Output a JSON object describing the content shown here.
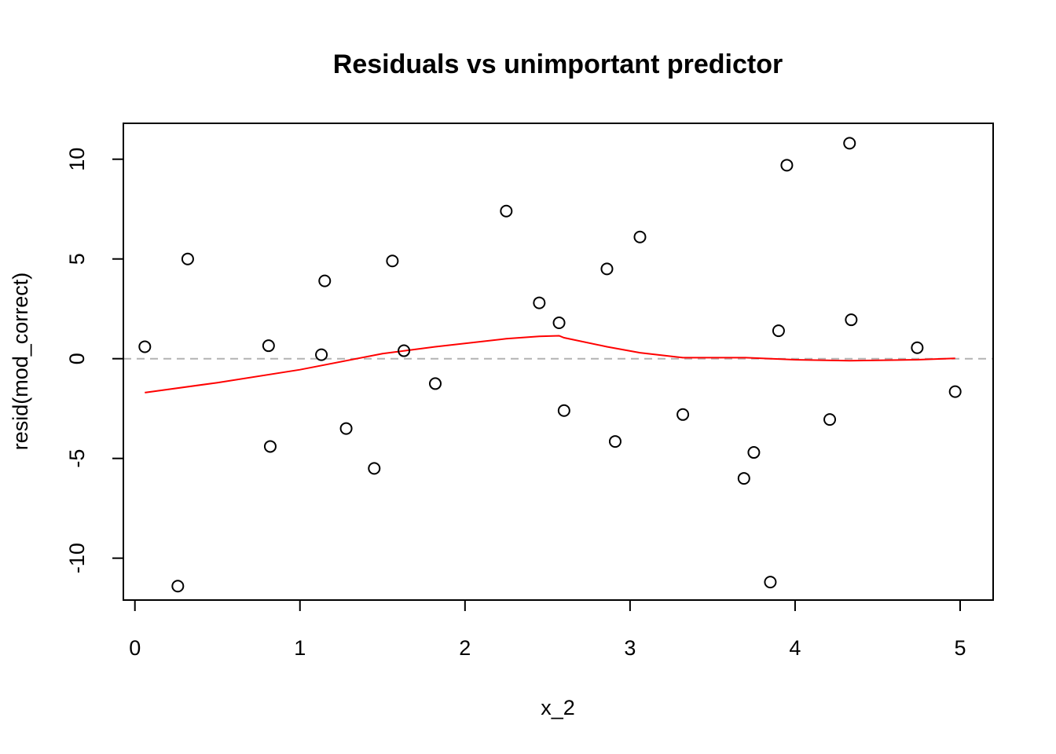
{
  "chart_data": {
    "type": "scatter",
    "title": "Residuals vs unimportant predictor",
    "xlabel": "x_2",
    "ylabel": "resid(mod_correct)",
    "xlim": [
      -0.07,
      5.2
    ],
    "ylim": [
      -12.1,
      11.8
    ],
    "x_ticks": [
      0,
      1,
      2,
      3,
      4,
      5
    ],
    "y_ticks": [
      -10,
      -5,
      0,
      5,
      10
    ],
    "reference_line": {
      "y": 0,
      "style": "dashed",
      "color": "#b3b3b3"
    },
    "point_color": "#000000",
    "points": [
      {
        "x": 0.06,
        "y": 0.6
      },
      {
        "x": 0.26,
        "y": -11.4
      },
      {
        "x": 0.32,
        "y": 5.0
      },
      {
        "x": 0.81,
        "y": 0.65
      },
      {
        "x": 0.82,
        "y": -4.4
      },
      {
        "x": 1.13,
        "y": 0.2
      },
      {
        "x": 1.15,
        "y": 3.9
      },
      {
        "x": 1.28,
        "y": -3.5
      },
      {
        "x": 1.45,
        "y": -5.5
      },
      {
        "x": 1.56,
        "y": 4.9
      },
      {
        "x": 1.63,
        "y": 0.4
      },
      {
        "x": 1.82,
        "y": -1.25
      },
      {
        "x": 2.25,
        "y": 7.4
      },
      {
        "x": 2.45,
        "y": 2.8
      },
      {
        "x": 2.57,
        "y": 1.8
      },
      {
        "x": 2.6,
        "y": -2.6
      },
      {
        "x": 2.86,
        "y": 4.5
      },
      {
        "x": 2.91,
        "y": -4.15
      },
      {
        "x": 3.06,
        "y": 6.1
      },
      {
        "x": 3.32,
        "y": -2.8
      },
      {
        "x": 3.69,
        "y": -6.0
      },
      {
        "x": 3.75,
        "y": -4.7
      },
      {
        "x": 3.85,
        "y": -11.2
      },
      {
        "x": 3.9,
        "y": 1.4
      },
      {
        "x": 3.95,
        "y": 9.7
      },
      {
        "x": 4.21,
        "y": -3.05
      },
      {
        "x": 4.33,
        "y": 10.8
      },
      {
        "x": 4.34,
        "y": 1.95
      },
      {
        "x": 4.74,
        "y": 0.55
      },
      {
        "x": 4.97,
        "y": -1.65
      }
    ],
    "smooth_line": {
      "color": "#ff0000",
      "x": [
        0.06,
        0.5,
        1.0,
        1.5,
        1.82,
        2.25,
        2.45,
        2.57,
        2.6,
        2.86,
        3.06,
        3.32,
        3.7,
        4.0,
        4.33,
        4.74,
        4.97
      ],
      "y": [
        -1.7,
        -1.2,
        -0.55,
        0.25,
        0.6,
        1.0,
        1.12,
        1.15,
        1.05,
        0.6,
        0.3,
        0.05,
        0.05,
        -0.05,
        -0.1,
        -0.05,
        0.02
      ]
    }
  }
}
